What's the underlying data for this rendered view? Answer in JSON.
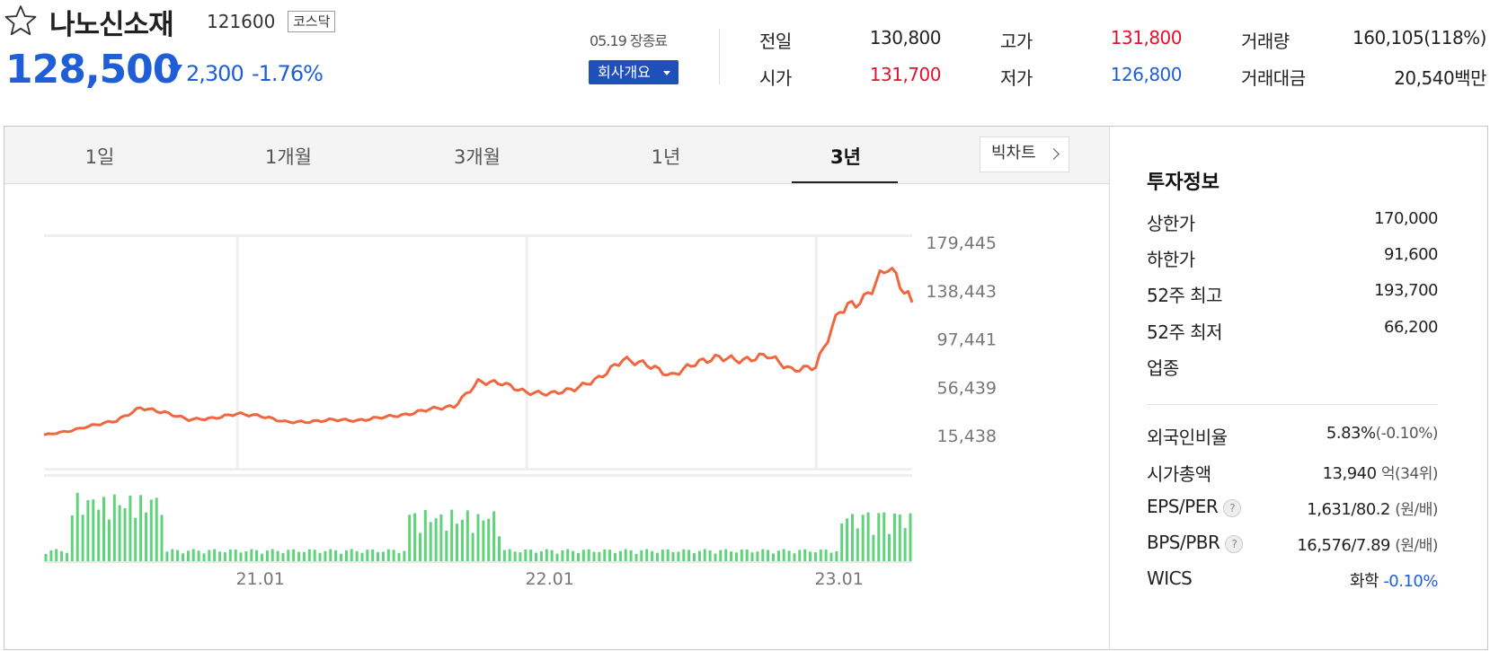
{
  "stock": {
    "name": "나노신소재",
    "code": "121600",
    "market": "코스닥",
    "price": "128,500",
    "change_amount": "2,300",
    "change_percent": "-1.76%",
    "direction": "down"
  },
  "session": {
    "close_label": "05.19 장종료",
    "company_button": "회사개요"
  },
  "quote": {
    "prev_close_label": "전일",
    "prev_close": "130,800",
    "open_label": "시가",
    "open": "131,700",
    "high_label": "고가",
    "high": "131,800",
    "low_label": "저가",
    "low": "126,800",
    "volume_label": "거래량",
    "volume": "160,105(118%)",
    "amount_label": "거래대금",
    "amount_value": "20,540",
    "amount_unit": "백만"
  },
  "tabs": [
    "1일",
    "1개월",
    "3개월",
    "1년",
    "3년"
  ],
  "active_tab": "3년",
  "big_chart_button": "빅차트",
  "chart_data": {
    "type": "line",
    "y_ticks": [
      "179,445",
      "138,443",
      "97,441",
      "56,439",
      "15,438"
    ],
    "x_ticks": [
      "21.01",
      "22.01",
      "23.01"
    ],
    "price_series": [
      {
        "x": "2020-05",
        "y": 16000
      },
      {
        "x": "2020-06",
        "y": 19000
      },
      {
        "x": "2020-07",
        "y": 24000
      },
      {
        "x": "2020-08",
        "y": 28000
      },
      {
        "x": "2020-09",
        "y": 39000
      },
      {
        "x": "2020-10",
        "y": 35000
      },
      {
        "x": "2020-11",
        "y": 29000
      },
      {
        "x": "2020-12",
        "y": 30000
      },
      {
        "x": "2021-01",
        "y": 34000
      },
      {
        "x": "2021-02",
        "y": 32000
      },
      {
        "x": "2021-03",
        "y": 27000
      },
      {
        "x": "2021-04",
        "y": 27000
      },
      {
        "x": "2021-05",
        "y": 29000
      },
      {
        "x": "2021-06",
        "y": 28000
      },
      {
        "x": "2021-07",
        "y": 31000
      },
      {
        "x": "2021-08",
        "y": 33000
      },
      {
        "x": "2021-09",
        "y": 38000
      },
      {
        "x": "2021-10",
        "y": 40000
      },
      {
        "x": "2021-11",
        "y": 61000
      },
      {
        "x": "2021-12",
        "y": 60000
      },
      {
        "x": "2022-01",
        "y": 52000
      },
      {
        "x": "2022-02",
        "y": 51000
      },
      {
        "x": "2022-03",
        "y": 55000
      },
      {
        "x": "2022-04",
        "y": 64000
      },
      {
        "x": "2022-05",
        "y": 80000
      },
      {
        "x": "2022-06",
        "y": 76000
      },
      {
        "x": "2022-07",
        "y": 66000
      },
      {
        "x": "2022-08",
        "y": 77000
      },
      {
        "x": "2022-09",
        "y": 82000
      },
      {
        "x": "2022-10",
        "y": 79000
      },
      {
        "x": "2022-11",
        "y": 84000
      },
      {
        "x": "2022-12",
        "y": 71000
      },
      {
        "x": "2023-01",
        "y": 74000
      },
      {
        "x": "2023-02",
        "y": 122000
      },
      {
        "x": "2023-03",
        "y": 131000
      },
      {
        "x": "2023-04",
        "y": 160000
      },
      {
        "x": "2023-05",
        "y": 128500
      }
    ]
  },
  "invest_info": {
    "title": "투자정보",
    "upper_limit_label": "상한가",
    "upper_limit": "170,000",
    "lower_limit_label": "하한가",
    "lower_limit": "91,600",
    "high52_label": "52주 최고",
    "high52": "193,700",
    "low52_label": "52주 최저",
    "low52": "66,200",
    "industry_label": "업종",
    "foreign_label": "외국인비율",
    "foreign_value": "5.83%",
    "foreign_change": "(-0.10%)",
    "mcap_label": "시가총액",
    "mcap_value": "13,940",
    "mcap_unit": "억(34위)",
    "eps_label": "EPS/PER",
    "eps_value": "1,631/80.2",
    "eps_unit": "(원/배)",
    "bps_label": "BPS/PBR",
    "bps_value": "16,576/7.89",
    "bps_unit": "(원/배)",
    "wics_label": "WICS",
    "wics_sector": "화학",
    "wics_change": "-0.10%"
  },
  "colors": {
    "up": "#e5102e",
    "down": "#1f5ed6",
    "line": "#f0663e",
    "volume": "#5fd37a"
  }
}
